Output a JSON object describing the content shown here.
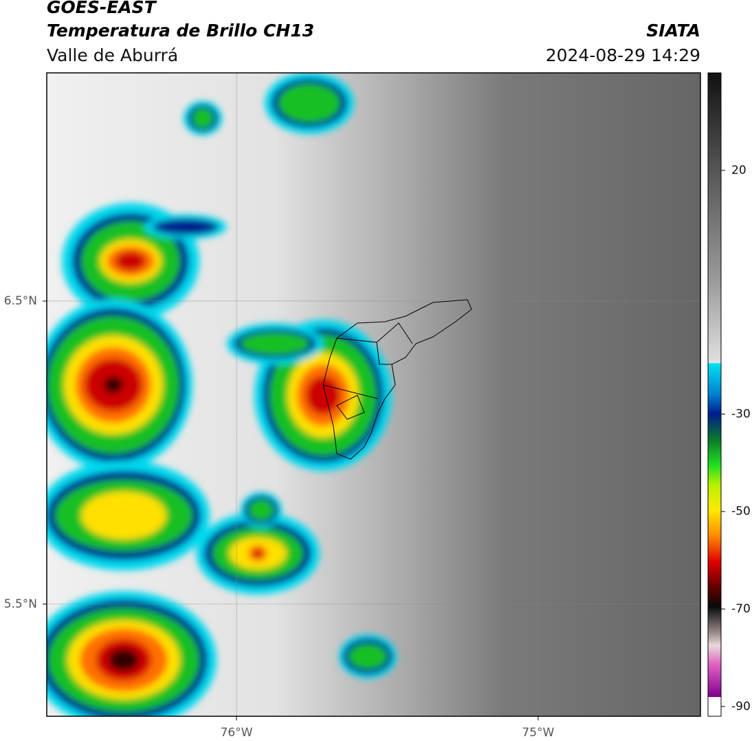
{
  "header": {
    "title": "GOES-EAST",
    "subtitle": "Temperatura de Brillo CH13",
    "region": "Valle de Aburrá",
    "source": "SIATA",
    "timestamp": "2024-08-29 14:29"
  },
  "map": {
    "xlim": [
      -76.629,
      -74.462
    ],
    "ylim": [
      5.13,
      7.253
    ],
    "xticks": [
      {
        "value": -76,
        "label": "76°W"
      },
      {
        "value": -75,
        "label": "75°W"
      }
    ],
    "yticks": [
      {
        "value": 6.5,
        "label": "6.5°N"
      },
      {
        "value": 5.5,
        "label": "5.5°N"
      }
    ],
    "grid": true
  },
  "colorbar": {
    "lim": [
      -92,
      40
    ],
    "ticks": [
      20,
      -30,
      -50,
      -70,
      -90
    ]
  }
}
